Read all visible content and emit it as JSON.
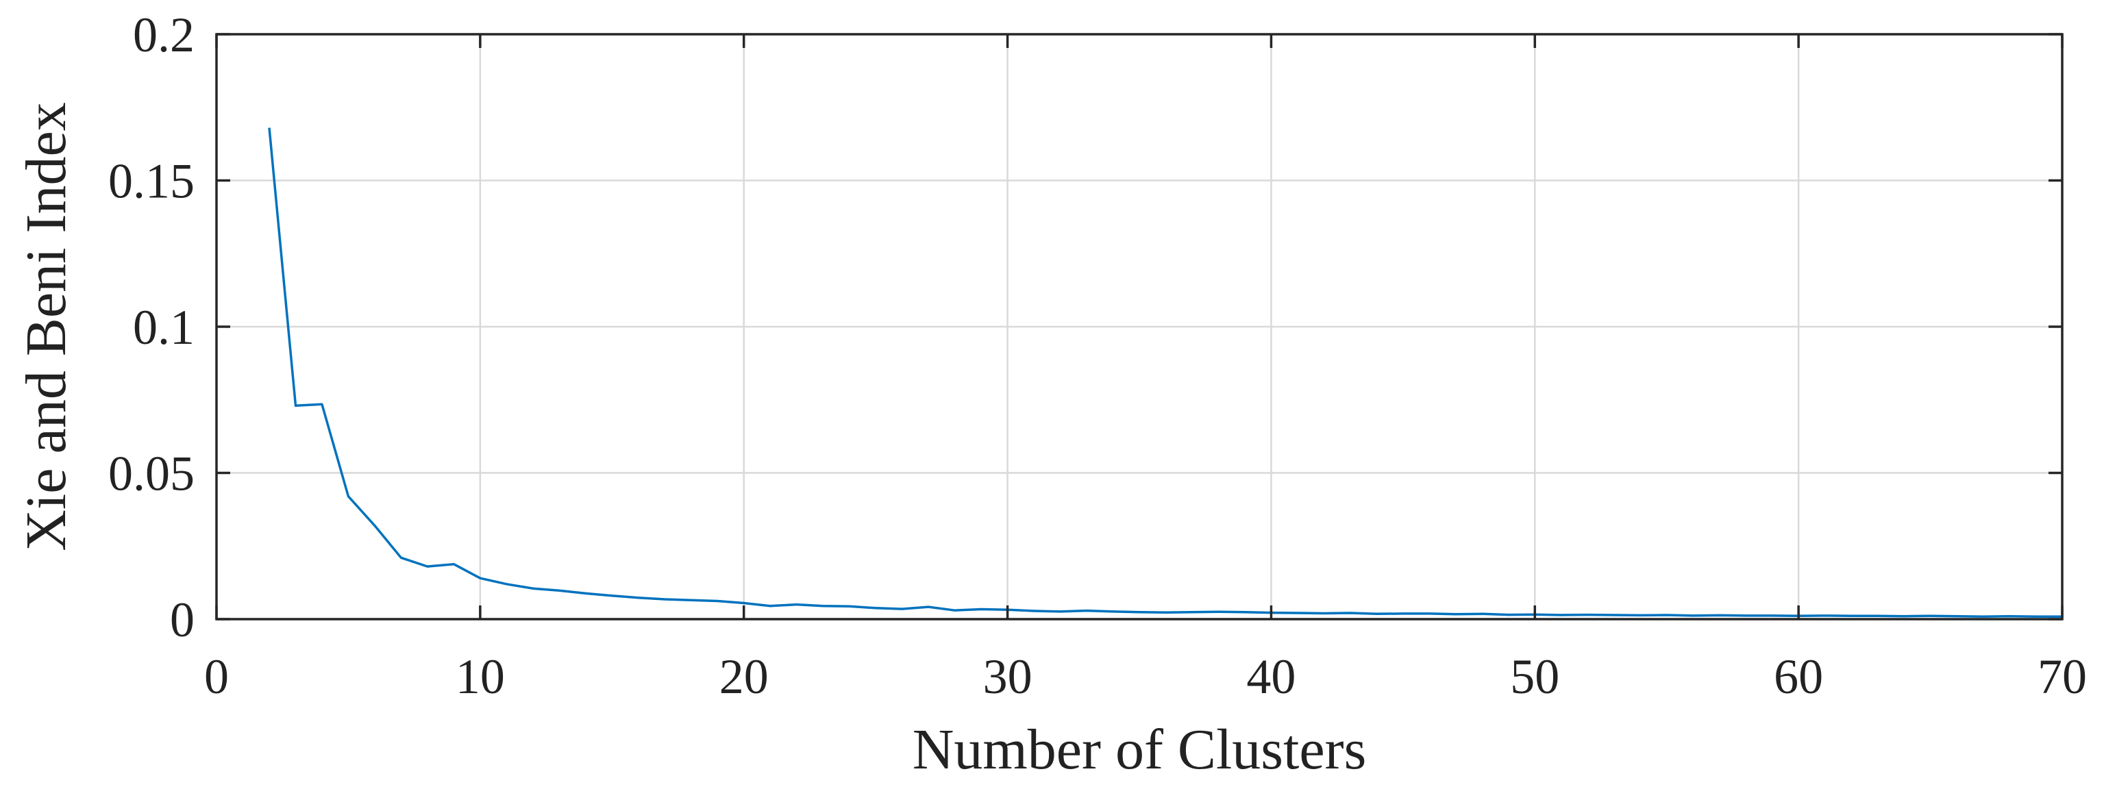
{
  "chart_data": {
    "type": "line",
    "title": "",
    "xlabel": "Number of Clusters",
    "ylabel": "Xie and Beni Index",
    "xlim": [
      0,
      70
    ],
    "ylim": [
      0,
      0.2
    ],
    "xticks": [
      "0",
      "10",
      "20",
      "30",
      "40",
      "50",
      "60",
      "70"
    ],
    "yticks": [
      "0",
      "0.05",
      "0.1",
      "0.15",
      "0.2"
    ],
    "grid": true,
    "series": [
      {
        "color": "#0072BD",
        "x": [
          2,
          3,
          4,
          5,
          6,
          7,
          8,
          9,
          10,
          11,
          12,
          13,
          14,
          15,
          16,
          17,
          18,
          19,
          20,
          21,
          22,
          23,
          24,
          25,
          26,
          27,
          28,
          29,
          30,
          31,
          32,
          33,
          34,
          35,
          36,
          37,
          38,
          39,
          40,
          41,
          42,
          43,
          44,
          45,
          46,
          47,
          48,
          49,
          50,
          51,
          52,
          53,
          54,
          55,
          56,
          57,
          58,
          59,
          60,
          61,
          62,
          63,
          64,
          65,
          66,
          67,
          68,
          69,
          70
        ],
        "y": [
          0.168,
          0.073,
          0.0735,
          0.042,
          0.032,
          0.021,
          0.018,
          0.0188,
          0.014,
          0.012,
          0.0105,
          0.0098,
          0.0088,
          0.008,
          0.0073,
          0.0068,
          0.0065,
          0.0062,
          0.0055,
          0.0045,
          0.005,
          0.0045,
          0.0044,
          0.0038,
          0.0035,
          0.0042,
          0.003,
          0.0034,
          0.0032,
          0.0028,
          0.0026,
          0.0029,
          0.0026,
          0.0024,
          0.0023,
          0.0024,
          0.0025,
          0.0024,
          0.0022,
          0.0021,
          0.002,
          0.0021,
          0.0018,
          0.0019,
          0.0019,
          0.0017,
          0.0018,
          0.0015,
          0.0016,
          0.0014,
          0.0015,
          0.0014,
          0.0013,
          0.0014,
          0.0012,
          0.0013,
          0.0012,
          0.0012,
          0.0011,
          0.0012,
          0.0011,
          0.0011,
          0.001,
          0.0011,
          0.001,
          0.0009,
          0.001,
          0.0009,
          0.0009
        ]
      }
    ]
  }
}
